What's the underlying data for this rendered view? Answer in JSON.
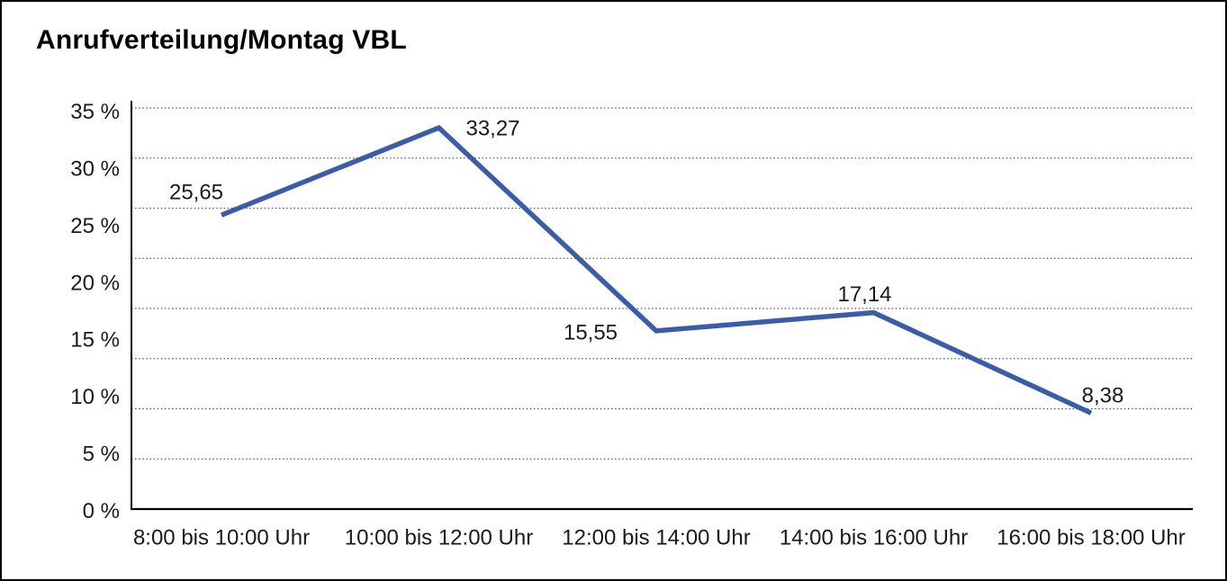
{
  "title": "Anrufverteilung/Montag VBL",
  "chart_data": {
    "type": "line",
    "title": "Anrufverteilung/Montag VBL",
    "categories": [
      "8:00 bis 10:00 Uhr",
      "10:00 bis 12:00 Uhr",
      "12:00 bis 14:00 Uhr",
      "14:00 bis 16:00 Uhr",
      "16:00 bis 18:00 Uhr"
    ],
    "values": [
      25.65,
      33.27,
      15.55,
      17.14,
      8.38
    ],
    "value_labels": [
      "25,65",
      "33,27",
      "15,55",
      "17,14",
      "8,38"
    ],
    "y_ticks": [
      "35 %",
      "30 %",
      "25 %",
      "20 %",
      "15 %",
      "10 %",
      "5 %",
      "0 %"
    ],
    "xlabel": "",
    "ylabel": "",
    "ylim": [
      0,
      35
    ],
    "grid": "dotted-horizontal",
    "legend": "none",
    "line_color": "#3B5CA7",
    "axis_color": "#000000",
    "gridline_color": "#555555",
    "unit": "%"
  }
}
